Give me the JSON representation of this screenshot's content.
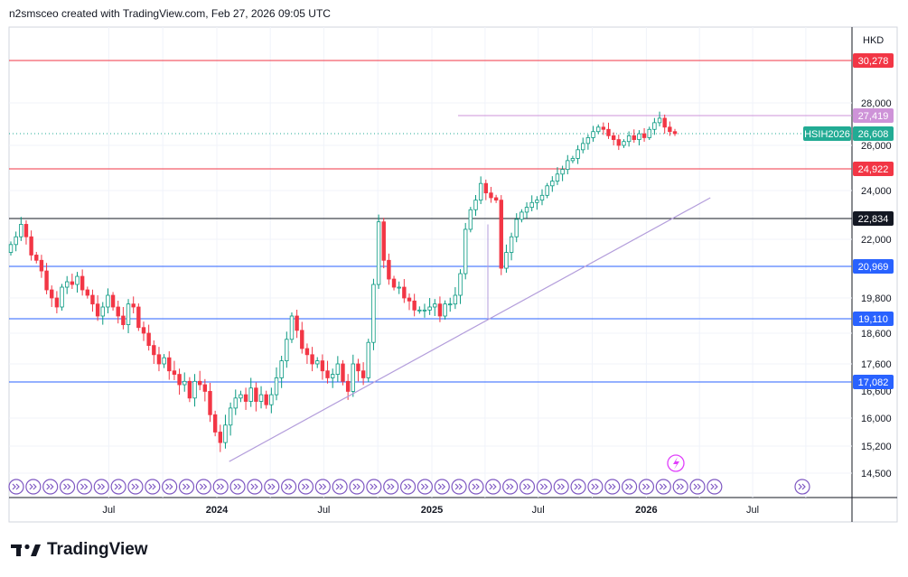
{
  "header": {
    "attribution": "n2smsceo created with TradingView.com, Feb 27, 2026 09:05 UTC"
  },
  "footer": {
    "brand": "TradingView"
  },
  "chart_data": {
    "type": "candlestick",
    "currency": "HKD",
    "symbol_label": "HSIH2026",
    "last_price": 26608,
    "y_tick_labels": [
      28000,
      26000,
      24000,
      22000,
      19800,
      18600,
      17600,
      16000,
      15200,
      14500
    ],
    "partially_hidden_y_tick": "16,600",
    "x_tick_labels": [
      "Jul",
      "2024",
      "Jul",
      "2025",
      "Jul",
      "2026",
      "Jul"
    ],
    "horizontal_levels": [
      {
        "price": 30278,
        "label": "30,278",
        "color": "#f23645"
      },
      {
        "price": 27419,
        "label": "27,419",
        "color": "#ce93d8"
      },
      {
        "price": 24922,
        "label": "24,922",
        "color": "#f23645"
      },
      {
        "price": 22834,
        "label": "22,834",
        "color": "#131722"
      },
      {
        "price": 20969,
        "label": "20,969",
        "color": "#2962ff"
      },
      {
        "price": 19110,
        "label": "19,110",
        "color": "#2962ff"
      },
      {
        "price": 17082,
        "label": "17,082",
        "color": "#2962ff"
      }
    ],
    "last_price_label": "26,608",
    "trendline": {
      "from": {
        "date": "2024-01-22",
        "price": 14800
      },
      "to": {
        "date": "2026-04-20",
        "price": 23700
      }
    },
    "candles_approx_weekly_close": [
      21800,
      22100,
      22600,
      22100,
      21400,
      21200,
      20800,
      20100,
      19800,
      19500,
      20200,
      20400,
      20300,
      20600,
      20100,
      19900,
      19600,
      19200,
      19500,
      19900,
      19500,
      19200,
      18900,
      19600,
      19500,
      18800,
      18600,
      18200,
      17900,
      17600,
      17800,
      17400,
      17300,
      17000,
      17100,
      16600,
      17100,
      17000,
      16800,
      16100,
      15600,
      15300,
      15800,
      16300,
      16600,
      16700,
      16500,
      16900,
      16500,
      16700,
      16400,
      16700,
      17200,
      17700,
      18400,
      19200,
      18700,
      18100,
      17900,
      17600,
      17700,
      17400,
      17200,
      17300,
      17600,
      17100,
      16800,
      17600,
      17400,
      17200,
      18300,
      20300,
      22700,
      21200,
      20500,
      20200,
      20200,
      19800,
      19700,
      19400,
      19400,
      19400,
      19500,
      19600,
      19200,
      19600,
      19600,
      19900,
      20700,
      22400,
      23200,
      23600,
      24300,
      23900,
      23700,
      23600,
      20900,
      21500,
      22100,
      22800,
      23100,
      23300,
      23500,
      23600,
      23800,
      24200,
      24400,
      24700,
      24900,
      25300,
      25400,
      25800,
      26100,
      26400,
      26700,
      26900,
      26800,
      26500,
      26300,
      26000,
      26200,
      26500,
      26300,
      26600,
      26400,
      26800,
      27100,
      27300,
      26900,
      26700,
      26608
    ]
  }
}
